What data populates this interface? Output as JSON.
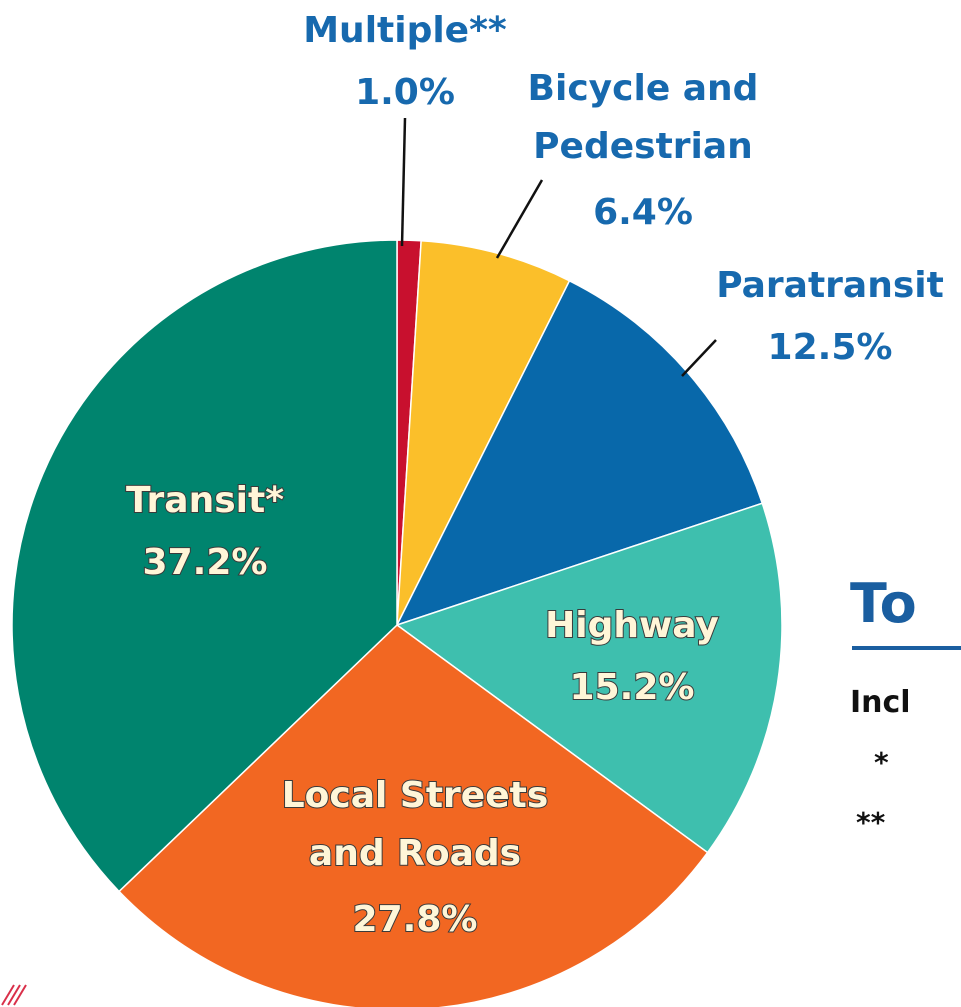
{
  "chart_data": {
    "type": "pie",
    "categories": [
      "Multiple**",
      "Bicycle and Pedestrian",
      "Paratransit",
      "Highway",
      "Local Streets and Roads",
      "Transit*"
    ],
    "values": [
      1.0,
      6.4,
      12.5,
      15.2,
      27.8,
      37.2
    ],
    "value_labels": [
      "1.0%",
      "6.4%",
      "12.5%",
      "15.2%",
      "27.8%",
      "37.2%"
    ],
    "colors": [
      "#c8102e",
      "#fbbf2a",
      "#0868aa",
      "#3ebfae",
      "#f26722",
      "#00846e"
    ]
  },
  "side_text": {
    "heading": "To",
    "line": "Incl",
    "notes": [
      "*",
      "**"
    ]
  }
}
